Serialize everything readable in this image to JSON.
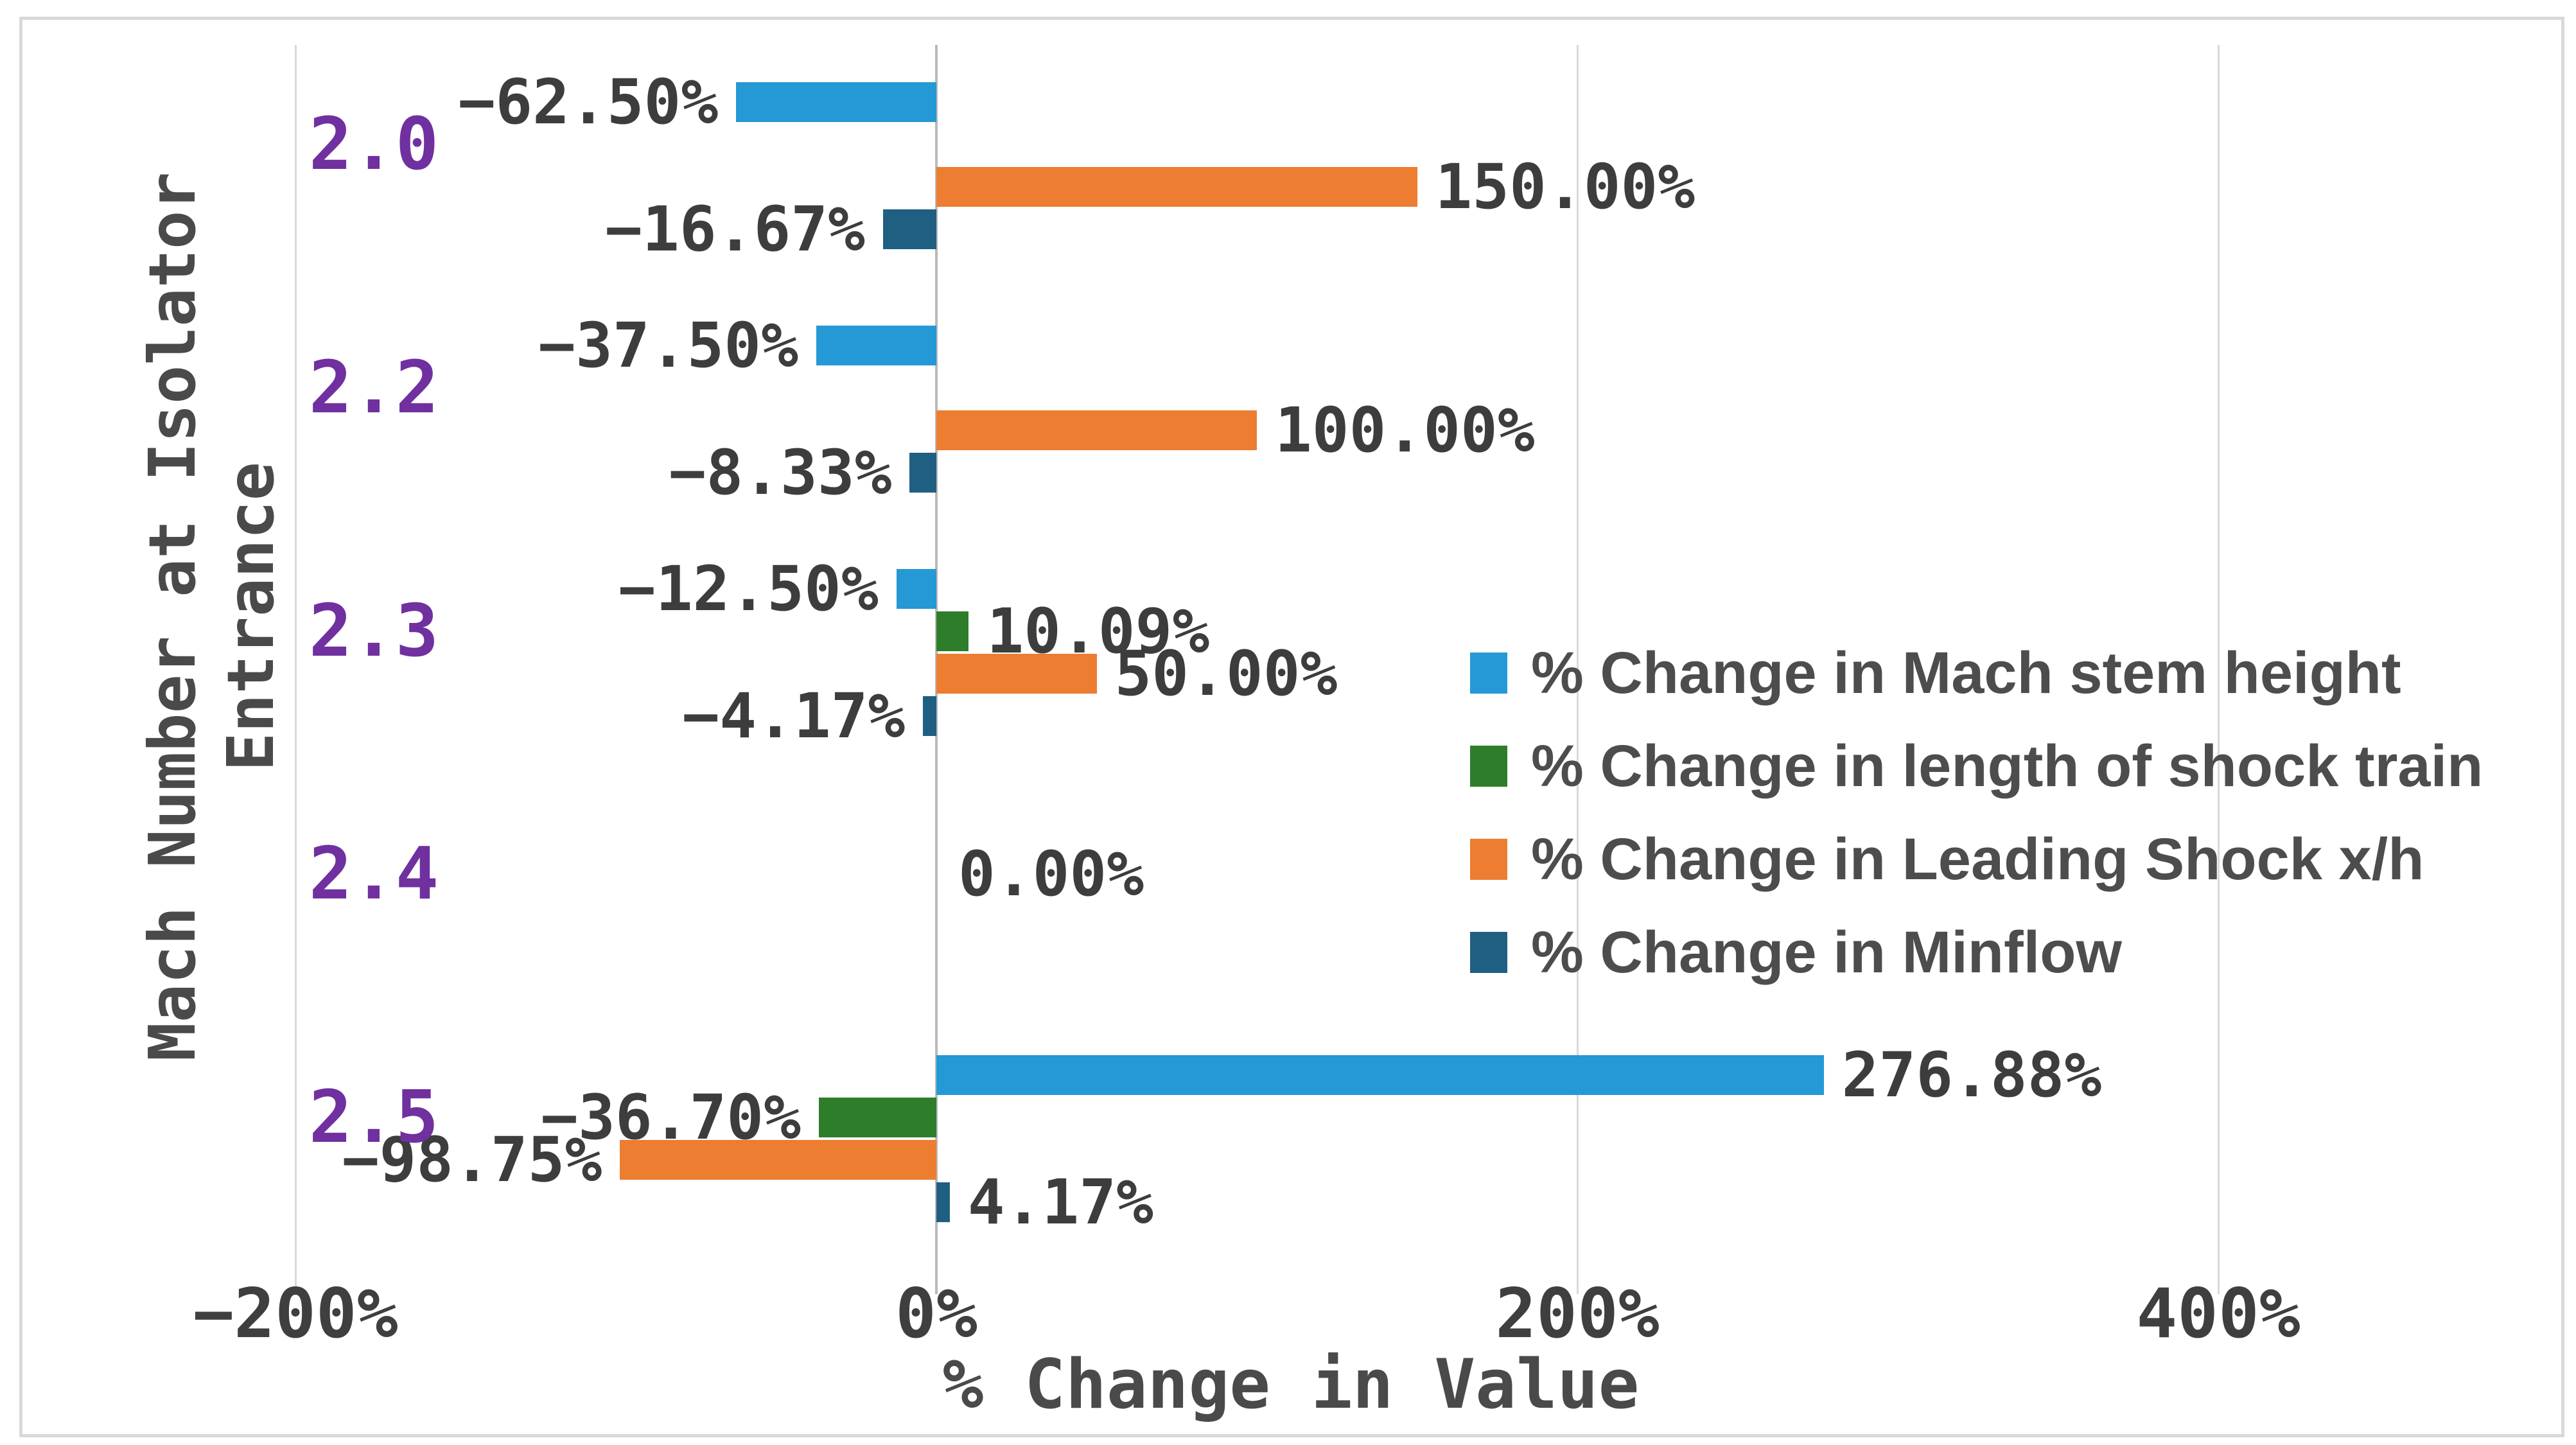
{
  "chart_data": {
    "type": "bar",
    "orientation": "horizontal",
    "title": "",
    "xlabel": "% Change in Value",
    "ylabel": "Mach Number at Isolator Entrance",
    "ylabel_lines": {
      "line1": "Mach Number at Isolator",
      "line2": "Entrance"
    },
    "categories": [
      "2.0",
      "2.2",
      "2.3",
      "2.4",
      "2.5"
    ],
    "category_label_color": "#7030A0",
    "xlim": [
      -200,
      460
    ],
    "grid": true,
    "legend_position": "center-right-inside",
    "x_ticks": [
      {
        "value": -200,
        "label": "−200%"
      },
      {
        "value": 0,
        "label": "0%"
      },
      {
        "value": 200,
        "label": "200%"
      },
      {
        "value": 400,
        "label": "400%"
      }
    ],
    "series": [
      {
        "name": "% Change in Mach stem height",
        "color": "#2599D5",
        "values": [
          -62.5,
          -37.5,
          -12.5,
          null,
          276.88
        ],
        "labels": [
          "−62.50%",
          "−37.50%",
          "−12.50%",
          null,
          "276.88%"
        ]
      },
      {
        "name": "% Change in length of shock train",
        "color": "#2E7D2B",
        "values": [
          null,
          null,
          10.09,
          0.0,
          -36.7
        ],
        "labels": [
          null,
          null,
          "10.09%",
          "0.00%",
          "−36.70%"
        ]
      },
      {
        "name": "% Change in Leading Shock x/h",
        "color": "#ED7D31",
        "values": [
          150.0,
          100.0,
          50.0,
          null,
          -98.75
        ],
        "labels": [
          "150.00%",
          "100.00%",
          "50.00%",
          null,
          "−98.75%"
        ]
      },
      {
        "name": "% Change in Minflow",
        "color": "#1F5F82",
        "values": [
          -16.67,
          -8.33,
          -4.17,
          null,
          4.17
        ],
        "labels": [
          "−16.67%",
          "−8.33%",
          "−4.17%",
          null,
          "4.17%"
        ]
      }
    ],
    "colors": {
      "gridline": "#D9D9D9",
      "zero_axis": "#B9B9B9",
      "data_label": "#3D3D3D",
      "tick_label": "#3F3F3F",
      "axis_title": "#4A4A4A",
      "legend_text": "#4D4D4D",
      "chart_border": "#D9D9D9",
      "background": "#FFFFFF"
    }
  }
}
